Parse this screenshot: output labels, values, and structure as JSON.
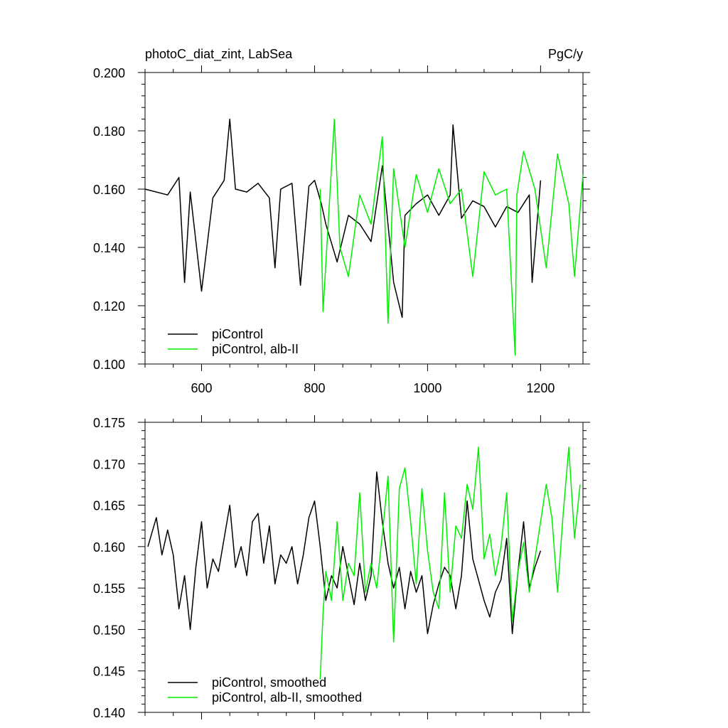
{
  "chart_data": [
    {
      "type": "line",
      "title": "photoC_diat_zint, LabSea",
      "units": "PgC/y",
      "xlim": [
        500,
        1275
      ],
      "ylim": [
        0.1,
        0.2
      ],
      "xticks": [
        600,
        800,
        1000,
        1200
      ],
      "xtick_labels": [
        "600",
        "800",
        "1000",
        "1200"
      ],
      "yticks": [
        0.1,
        0.12,
        0.14,
        0.16,
        0.18,
        0.2
      ],
      "ytick_labels": [
        "0.100",
        "0.120",
        "0.140",
        "0.160",
        "0.180",
        "0.200"
      ],
      "legend_position": "bottom-left",
      "series": [
        {
          "name": "piControl",
          "color": "#000000",
          "x": [
            500,
            540,
            560,
            570,
            580,
            600,
            620,
            640,
            650,
            660,
            680,
            700,
            720,
            730,
            740,
            760,
            775,
            790,
            800,
            812,
            820,
            840,
            860,
            880,
            900,
            920,
            940,
            955,
            960,
            980,
            1000,
            1020,
            1040,
            1045,
            1060,
            1080,
            1100,
            1120,
            1140,
            1160,
            1180,
            1185,
            1200
          ],
          "y": [
            0.16,
            0.158,
            0.164,
            0.128,
            0.159,
            0.125,
            0.157,
            0.163,
            0.184,
            0.16,
            0.159,
            0.162,
            0.157,
            0.133,
            0.16,
            0.162,
            0.127,
            0.161,
            0.163,
            0.155,
            0.148,
            0.135,
            0.151,
            0.148,
            0.142,
            0.168,
            0.128,
            0.116,
            0.151,
            0.155,
            0.158,
            0.151,
            0.158,
            0.182,
            0.15,
            0.156,
            0.154,
            0.147,
            0.154,
            0.152,
            0.158,
            0.128,
            0.163
          ]
        },
        {
          "name": "piControl, alb-II",
          "color": "#00ee00",
          "x": [
            810,
            815,
            825,
            835,
            845,
            860,
            880,
            900,
            920,
            930,
            940,
            960,
            980,
            1000,
            1020,
            1040,
            1060,
            1080,
            1100,
            1120,
            1140,
            1155,
            1158,
            1170,
            1190,
            1210,
            1230,
            1250,
            1260,
            1275
          ],
          "y": [
            0.16,
            0.118,
            0.151,
            0.184,
            0.14,
            0.13,
            0.158,
            0.148,
            0.178,
            0.114,
            0.167,
            0.14,
            0.165,
            0.152,
            0.167,
            0.155,
            0.16,
            0.13,
            0.166,
            0.158,
            0.16,
            0.103,
            0.158,
            0.173,
            0.16,
            0.133,
            0.172,
            0.155,
            0.13,
            0.165
          ]
        }
      ]
    },
    {
      "type": "line",
      "xlim": [
        500,
        1275
      ],
      "ylim": [
        0.14,
        0.175
      ],
      "xticks": [
        600,
        800,
        1000,
        1200
      ],
      "xtick_labels": [],
      "yticks": [
        0.14,
        0.145,
        0.15,
        0.155,
        0.16,
        0.165,
        0.17,
        0.175
      ],
      "ytick_labels": [
        "0.140",
        "0.145",
        "0.150",
        "0.155",
        "0.160",
        "0.165",
        "0.170",
        "0.175"
      ],
      "legend_position": "bottom-left",
      "series": [
        {
          "name": "piControl, smoothed",
          "color": "#000000",
          "x": [
            505,
            520,
            530,
            540,
            550,
            560,
            570,
            580,
            590,
            600,
            610,
            620,
            630,
            640,
            650,
            660,
            670,
            680,
            690,
            700,
            710,
            720,
            730,
            740,
            750,
            760,
            770,
            780,
            790,
            800,
            810,
            820,
            830,
            840,
            850,
            860,
            870,
            880,
            890,
            900,
            910,
            920,
            930,
            940,
            950,
            960,
            970,
            980,
            990,
            1000,
            1010,
            1020,
            1030,
            1040,
            1050,
            1060,
            1070,
            1080,
            1090,
            1100,
            1110,
            1120,
            1130,
            1140,
            1150,
            1160,
            1170,
            1180,
            1190,
            1200
          ],
          "y": [
            0.16,
            0.1635,
            0.159,
            0.162,
            0.159,
            0.1525,
            0.1565,
            0.15,
            0.1575,
            0.163,
            0.155,
            0.1585,
            0.157,
            0.161,
            0.165,
            0.1575,
            0.16,
            0.1565,
            0.163,
            0.164,
            0.158,
            0.1625,
            0.1555,
            0.159,
            0.158,
            0.16,
            0.1555,
            0.159,
            0.1635,
            0.1655,
            0.16,
            0.1535,
            0.1565,
            0.155,
            0.16,
            0.1565,
            0.153,
            0.158,
            0.1535,
            0.1565,
            0.169,
            0.163,
            0.158,
            0.155,
            0.1575,
            0.1525,
            0.157,
            0.1545,
            0.1565,
            0.1495,
            0.153,
            0.1555,
            0.1575,
            0.1565,
            0.1525,
            0.1565,
            0.1655,
            0.1585,
            0.156,
            0.1535,
            0.1515,
            0.1545,
            0.156,
            0.161,
            0.1495,
            0.157,
            0.163,
            0.155,
            0.1575,
            0.1595
          ]
        },
        {
          "name": "piControl, alb-II, smoothed",
          "color": "#00ee00",
          "x": [
            810,
            815,
            820,
            830,
            840,
            850,
            860,
            870,
            880,
            890,
            900,
            910,
            920,
            930,
            940,
            950,
            960,
            970,
            980,
            990,
            1000,
            1010,
            1020,
            1030,
            1040,
            1050,
            1060,
            1070,
            1080,
            1090,
            1100,
            1110,
            1120,
            1130,
            1140,
            1150,
            1160,
            1170,
            1180,
            1190,
            1200,
            1210,
            1220,
            1230,
            1240,
            1250,
            1260,
            1270
          ],
          "y": [
            0.144,
            0.152,
            0.157,
            0.1535,
            0.163,
            0.1535,
            0.158,
            0.1565,
            0.1665,
            0.1545,
            0.158,
            0.155,
            0.1615,
            0.1685,
            0.1485,
            0.167,
            0.1695,
            0.163,
            0.1555,
            0.167,
            0.1595,
            0.1545,
            0.1525,
            0.1665,
            0.1545,
            0.1625,
            0.161,
            0.1675,
            0.1645,
            0.172,
            0.1585,
            0.1615,
            0.1565,
            0.16,
            0.1665,
            0.151,
            0.157,
            0.1605,
            0.1545,
            0.1585,
            0.163,
            0.1675,
            0.1635,
            0.1545,
            0.164,
            0.172,
            0.161,
            0.1675
          ]
        }
      ]
    }
  ]
}
